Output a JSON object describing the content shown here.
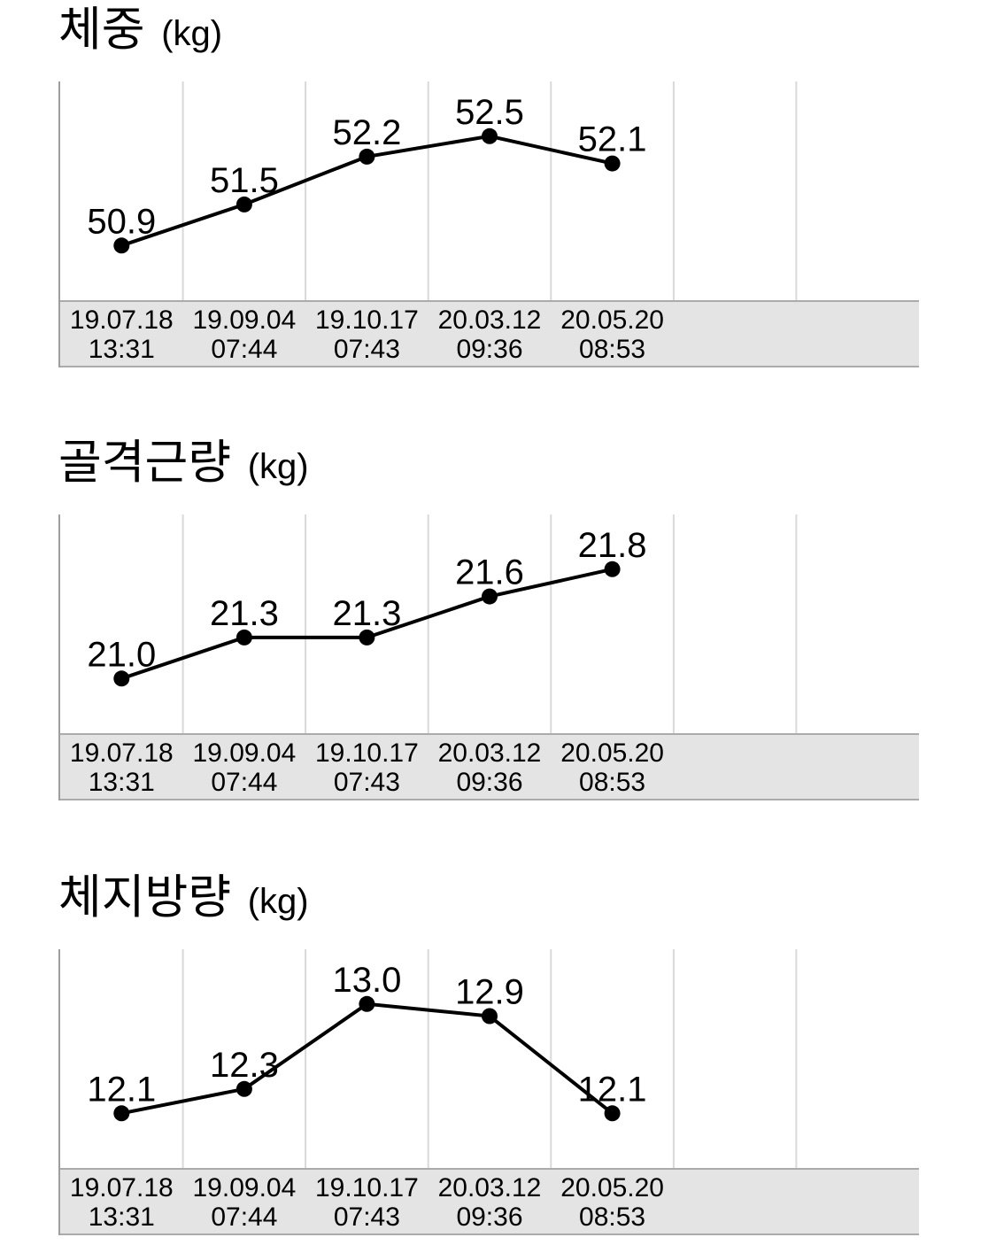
{
  "page": {
    "background": "#ffffff"
  },
  "colors": {
    "line": "#000000",
    "marker": "#000000",
    "data_label_text": "#000000",
    "grid": "#d9d9d9",
    "plot_left_border": "#9e9e9e",
    "band_bg": "#e4e4e4",
    "band_border": "#ababab",
    "axis_text": "#000000",
    "title_text": "#000000"
  },
  "x_axis": {
    "labels": [
      {
        "date": "19.07.18",
        "time": "13:31"
      },
      {
        "date": "19.09.04",
        "time": "07:44"
      },
      {
        "date": "19.10.17",
        "time": "07:43"
      },
      {
        "date": "20.03.12",
        "time": "09:36"
      },
      {
        "date": "20.05.20",
        "time": "08:53"
      }
    ]
  },
  "chart_data": [
    {
      "type": "line",
      "title": "체중",
      "unit": "(kg)",
      "categories": [
        "19.07.18 13:31",
        "19.09.04 07:44",
        "19.10.17 07:43",
        "20.03.12 09:36",
        "20.05.20 08:53"
      ],
      "categories_two_line": [
        [
          "19.07.18",
          "13:31"
        ],
        [
          "19.09.04",
          "07:44"
        ],
        [
          "19.10.17",
          "07:43"
        ],
        [
          "20.03.12",
          "09:36"
        ],
        [
          "20.05.20",
          "08:53"
        ]
      ],
      "values": [
        50.9,
        51.5,
        52.2,
        52.5,
        52.1
      ],
      "data_labels": [
        "50.9",
        "51.5",
        "52.2",
        "52.5",
        "52.1"
      ],
      "grid": "vertical-only",
      "num_grid_columns": 7,
      "legend": "none",
      "marker": "filled-circle",
      "yaxis": "hidden"
    },
    {
      "type": "line",
      "title": "골격근량",
      "unit": "(kg)",
      "categories": [
        "19.07.18 13:31",
        "19.09.04 07:44",
        "19.10.17 07:43",
        "20.03.12 09:36",
        "20.05.20 08:53"
      ],
      "categories_two_line": [
        [
          "19.07.18",
          "13:31"
        ],
        [
          "19.09.04",
          "07:44"
        ],
        [
          "19.10.17",
          "07:43"
        ],
        [
          "20.03.12",
          "09:36"
        ],
        [
          "20.05.20",
          "08:53"
        ]
      ],
      "values": [
        21.0,
        21.3,
        21.3,
        21.6,
        21.8
      ],
      "data_labels": [
        "21.0",
        "21.3",
        "21.3",
        "21.6",
        "21.8"
      ],
      "grid": "vertical-only",
      "num_grid_columns": 7,
      "legend": "none",
      "marker": "filled-circle",
      "yaxis": "hidden"
    },
    {
      "type": "line",
      "title": "체지방량",
      "unit": "(kg)",
      "categories": [
        "19.07.18 13:31",
        "19.09.04 07:44",
        "19.10.17 07:43",
        "20.03.12 09:36",
        "20.05.20 08:53"
      ],
      "categories_two_line": [
        [
          "19.07.18",
          "13:31"
        ],
        [
          "19.09.04",
          "07:44"
        ],
        [
          "19.10.17",
          "07:43"
        ],
        [
          "20.03.12",
          "09:36"
        ],
        [
          "20.05.20",
          "08:53"
        ]
      ],
      "values": [
        12.1,
        12.3,
        13.0,
        12.9,
        12.1
      ],
      "data_labels": [
        "12.1",
        "12.3",
        "13.0",
        "12.9",
        "12.1"
      ],
      "grid": "vertical-only",
      "num_grid_columns": 7,
      "legend": "none",
      "marker": "filled-circle",
      "yaxis": "hidden"
    }
  ]
}
